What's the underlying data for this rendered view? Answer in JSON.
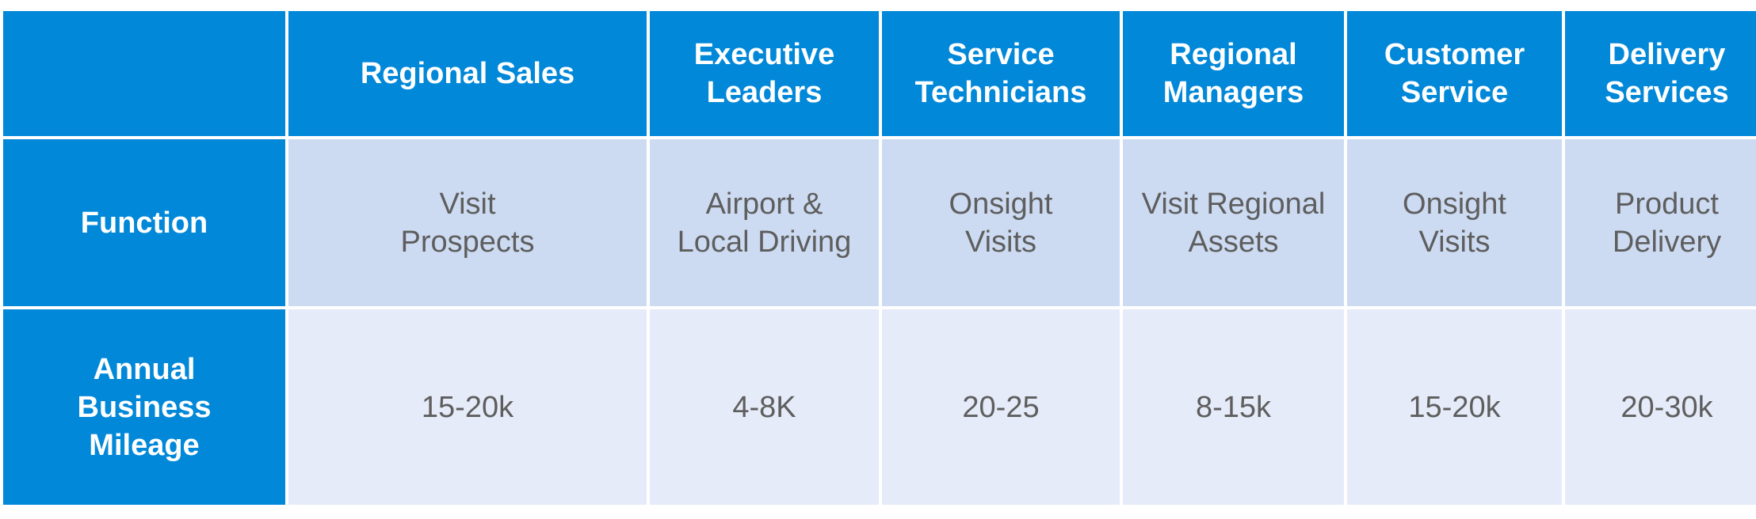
{
  "table": {
    "corner": "",
    "columns": [
      "Regional Sales",
      "Executive\nLeaders",
      "Service\nTechnicians",
      "Regional\nManagers",
      "Customer\nService",
      "Delivery\nServices"
    ],
    "rows": [
      {
        "label": "Function",
        "cells": [
          "Visit\nProspects",
          "Airport &\nLocal Driving",
          "Onsight\nVisits",
          "Visit Regional\nAssets",
          "Onsight\nVisits",
          "Product\nDelivery"
        ]
      },
      {
        "label": "Annual\nBusiness\nMileage",
        "cells": [
          "15-20k",
          "4-8K",
          "20-25",
          "8-15k",
          "15-20k",
          "20-30k"
        ]
      }
    ]
  }
}
